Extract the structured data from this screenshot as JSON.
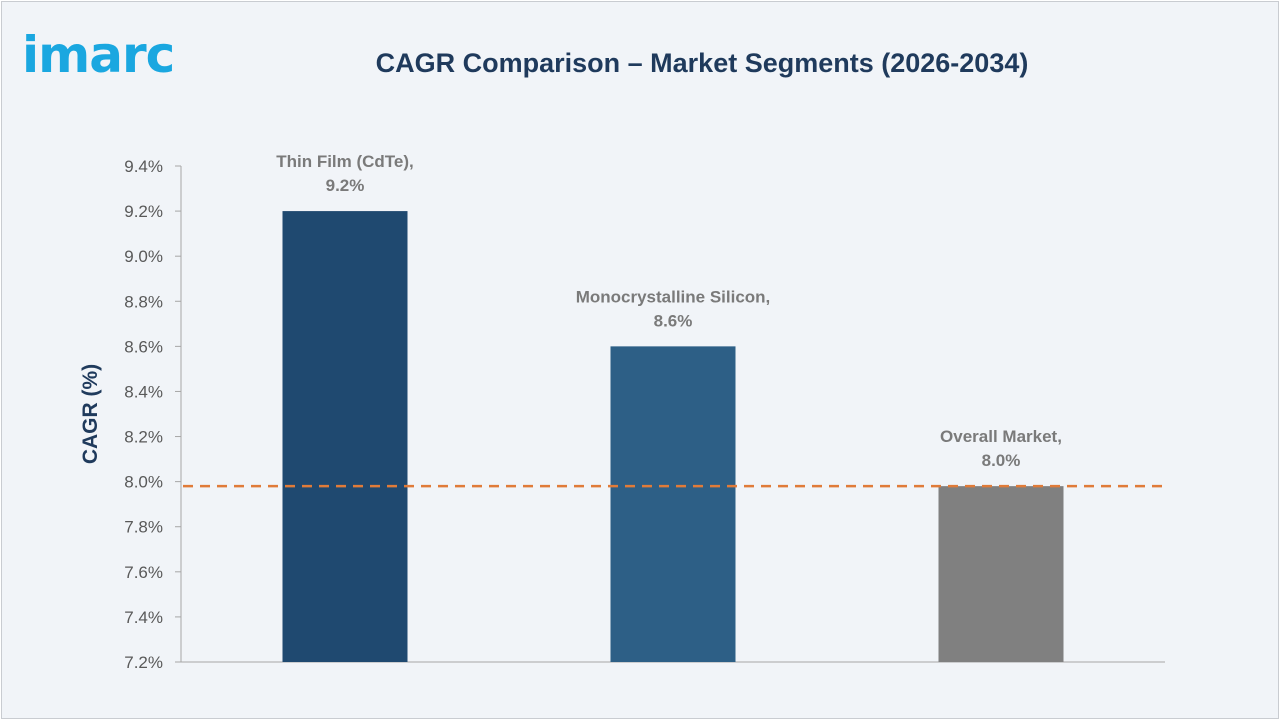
{
  "brand": {
    "logo_text": "imarc"
  },
  "chart_data": {
    "type": "bar",
    "title": "CAGR Comparison – Market Segments (2026-2034)",
    "ylabel": "CAGR (%)",
    "xlabel": "",
    "ylim": [
      7.2,
      9.4
    ],
    "y_ticks": [
      7.2,
      7.4,
      7.6,
      7.8,
      8.0,
      8.2,
      8.4,
      8.6,
      8.8,
      9.0,
      9.2,
      9.4
    ],
    "y_tick_labels": [
      "7.2%",
      "7.4%",
      "7.6%",
      "7.8%",
      "8.0%",
      "8.2%",
      "8.4%",
      "8.6%",
      "8.8%",
      "9.0%",
      "9.2%",
      "9.4%"
    ],
    "categories": [
      "Thin Film (CdTe)",
      "Monocrystalline Silicon",
      "Overall Market"
    ],
    "values": [
      9.2,
      8.6,
      7.98
    ],
    "data_labels": [
      [
        "Thin Film (CdTe),",
        "9.2%"
      ],
      [
        "Monocrystalline Silicon,",
        "8.6%"
      ],
      [
        "Overall Market,",
        "8.0%"
      ]
    ],
    "bar_colors": [
      "#1f4970",
      "#2d5f86",
      "#808080"
    ],
    "reference_line": {
      "value": 7.98,
      "style": "dashed",
      "color": "#e07b39"
    },
    "grid": false,
    "legend": "none"
  }
}
